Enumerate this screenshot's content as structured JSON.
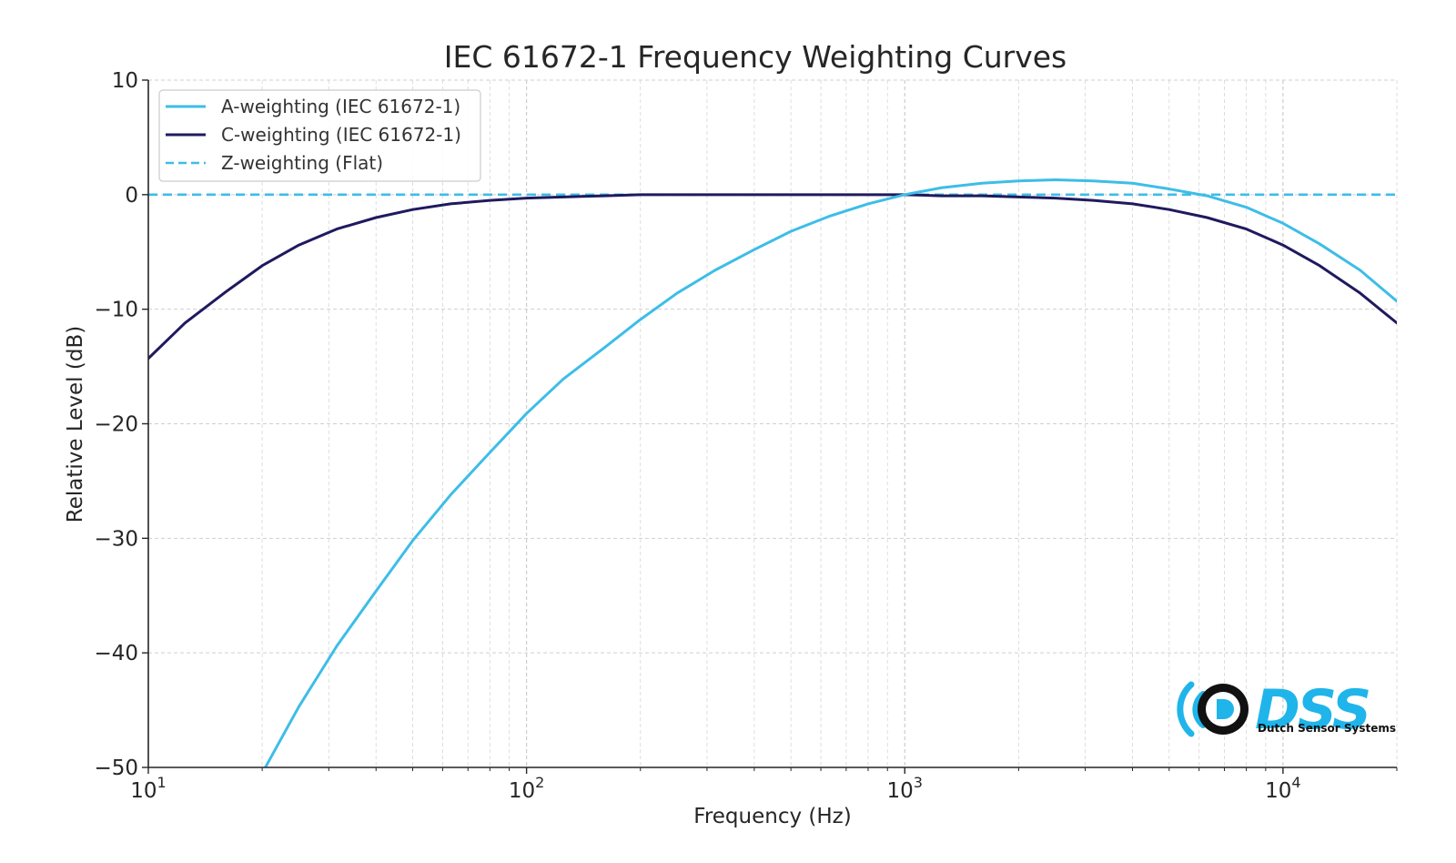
{
  "chart_data": {
    "type": "line",
    "title": "IEC 61672-1 Frequency Weighting Curves",
    "xlabel": "Frequency (Hz)",
    "ylabel": "Relative Level (dB)",
    "xscale": "log",
    "xlim": [
      10,
      20000
    ],
    "ylim": [
      -50,
      10
    ],
    "x_ticks": [
      {
        "value": 10,
        "base": "10",
        "exp": "1"
      },
      {
        "value": 100,
        "base": "10",
        "exp": "2"
      },
      {
        "value": 1000,
        "base": "10",
        "exp": "3"
      },
      {
        "value": 10000,
        "base": "10",
        "exp": "4"
      }
    ],
    "y_ticks": [
      {
        "value": 10,
        "label": "10"
      },
      {
        "value": 0,
        "label": "0"
      },
      {
        "value": -10,
        "label": "−10"
      },
      {
        "value": -20,
        "label": "−20"
      },
      {
        "value": -30,
        "label": "−30"
      },
      {
        "value": -40,
        "label": "−40"
      },
      {
        "value": -50,
        "label": "−50"
      }
    ],
    "grid": true,
    "legend_position": "top-left",
    "series": [
      {
        "name": "A-weighting (IEC 61672-1)",
        "color": "#3dbde8",
        "style": "solid",
        "x": [
          20,
          25,
          31.5,
          40,
          50,
          63,
          80,
          100,
          125,
          160,
          200,
          250,
          315,
          400,
          500,
          630,
          800,
          1000,
          1250,
          1600,
          2000,
          2500,
          3150,
          4000,
          5000,
          6300,
          8000,
          10000,
          12500,
          16000,
          20000
        ],
        "y": [
          -50.5,
          -44.7,
          -39.4,
          -34.6,
          -30.2,
          -26.2,
          -22.5,
          -19.1,
          -16.1,
          -13.4,
          -10.9,
          -8.6,
          -6.6,
          -4.8,
          -3.2,
          -1.9,
          -0.8,
          0.0,
          0.6,
          1.0,
          1.2,
          1.3,
          1.2,
          1.0,
          0.5,
          -0.1,
          -1.1,
          -2.5,
          -4.3,
          -6.6,
          -9.3
        ]
      },
      {
        "name": "C-weighting (IEC 61672-1)",
        "color": "#1f1a5e",
        "style": "solid",
        "x": [
          10,
          12.5,
          16,
          20,
          25,
          31.5,
          40,
          50,
          63,
          80,
          100,
          125,
          160,
          200,
          250,
          315,
          400,
          500,
          630,
          800,
          1000,
          1250,
          1600,
          2000,
          2500,
          3150,
          4000,
          5000,
          6300,
          8000,
          10000,
          12500,
          16000,
          20000
        ],
        "y": [
          -14.3,
          -11.2,
          -8.5,
          -6.2,
          -4.4,
          -3.0,
          -2.0,
          -1.3,
          -0.8,
          -0.5,
          -0.3,
          -0.2,
          -0.1,
          0.0,
          0.0,
          0.0,
          0.0,
          0.0,
          0.0,
          0.0,
          0.0,
          -0.1,
          -0.1,
          -0.2,
          -0.3,
          -0.5,
          -0.8,
          -1.3,
          -2.0,
          -3.0,
          -4.4,
          -6.2,
          -8.6,
          -11.2
        ]
      },
      {
        "name": "Z-weighting (Flat)",
        "color": "#3dbde8",
        "style": "dashed",
        "x": [
          10,
          20000
        ],
        "y": [
          0,
          0
        ]
      }
    ]
  },
  "logo": {
    "text": "DSS",
    "subtitle": "Dutch Sensor Systems",
    "primary_color": "#1fb5ea",
    "dark_color": "#111111"
  }
}
